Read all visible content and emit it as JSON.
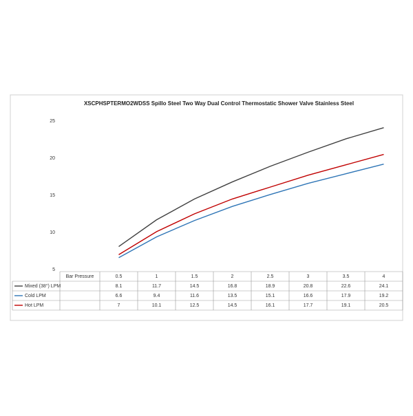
{
  "chart_data": {
    "type": "line",
    "title": "XSCPHSPTERMO2WDSS Spillo Steel Two Way Dual Control Thermostatic Shower Valve Stainless Steel",
    "table_header": "Bar Pressure",
    "categories": [
      "0.5",
      "1",
      "1.5",
      "2",
      "2.5",
      "3",
      "3.5",
      "4"
    ],
    "series": [
      {
        "name": "Mixed (38°) LPM",
        "color": "#404040",
        "values": [
          8.1,
          11.7,
          14.5,
          16.8,
          18.9,
          20.8,
          22.6,
          24.1
        ]
      },
      {
        "name": "Cold LPM",
        "color": "#2e75b6",
        "values": [
          6.6,
          9.4,
          11.6,
          13.5,
          15.1,
          16.6,
          17.9,
          19.2
        ]
      },
      {
        "name": "Hot LPM",
        "color": "#c00000",
        "values": [
          7,
          10.1,
          12.5,
          14.5,
          16.1,
          17.7,
          19.1,
          20.5
        ]
      }
    ],
    "ylim": [
      5,
      25
    ],
    "yticks": [
      5,
      10,
      15,
      20,
      25
    ],
    "grid": false
  }
}
